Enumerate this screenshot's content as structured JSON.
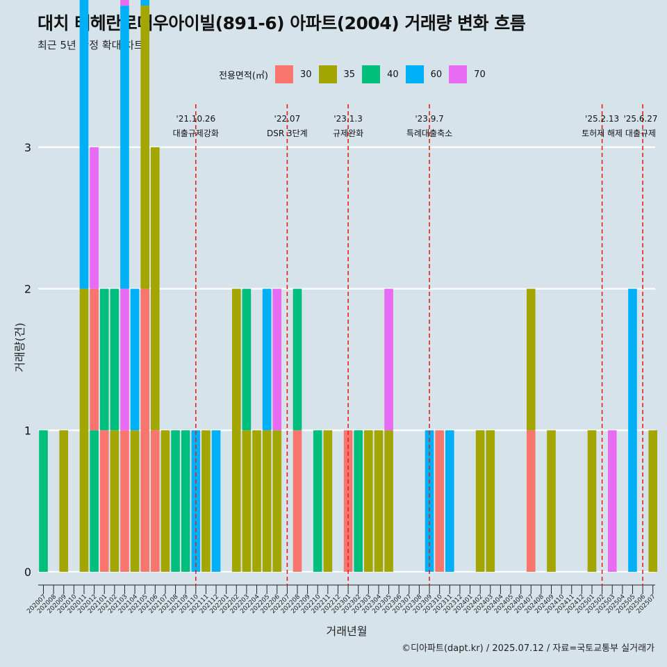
{
  "title": "대치 테헤란로대우아이빌(891-6) 아파트(2004) 거래량 변화 흐름",
  "subtitle": "최근 5년 한정 확대 차트",
  "legend_title": "전용면적(㎡)",
  "caption": "©디아파트(dapt.kr) / 2025.07.12 / 자료=국토교통부 실거래가",
  "colors": {
    "30": "#F8766D",
    "35": "#A3A500",
    "40": "#00BF7D",
    "60": "#00B0F6",
    "70": "#E76BF3",
    "background": "#d6e3ea",
    "event_line": "#e8201a"
  },
  "chart_data": {
    "type": "bar",
    "xlabel": "거래년월",
    "ylabel": "거래량(건)",
    "ylim": [
      0,
      3
    ],
    "yticks": [
      0,
      1,
      2,
      3
    ],
    "grid": true,
    "legend_position": "top",
    "series_names": [
      "30",
      "35",
      "40",
      "60",
      "70"
    ],
    "categories": [
      "202007",
      "202008",
      "202009",
      "202010",
      "202011",
      "202012",
      "202101",
      "202102",
      "202103",
      "202104",
      "202105",
      "202106",
      "202107",
      "202108",
      "202109",
      "202110",
      "202111",
      "202112",
      "202201",
      "202202",
      "202203",
      "202204",
      "202205",
      "202206",
      "202207",
      "202208",
      "202209",
      "202210",
      "202211",
      "202212",
      "202301",
      "202302",
      "202303",
      "202304",
      "202305",
      "202306",
      "202307",
      "202308",
      "202309",
      "202310",
      "202311",
      "202312",
      "202401",
      "202402",
      "202403",
      "202404",
      "202405",
      "202406",
      "202407",
      "202408",
      "202409",
      "202410",
      "202411",
      "202412",
      "202501",
      "202502",
      "202503",
      "202504",
      "202505",
      "202506",
      "202507"
    ],
    "bars": [
      {
        "month": "202007",
        "segments": [
          {
            "area": "40",
            "count": 1
          }
        ]
      },
      {
        "month": "202009",
        "segments": [
          {
            "area": "35",
            "count": 1
          }
        ]
      },
      {
        "month": "202011",
        "segments": [
          {
            "area": "35",
            "count": 2
          },
          {
            "area": "60",
            "count": 3
          }
        ]
      },
      {
        "month": "202012",
        "segments": [
          {
            "area": "40",
            "count": 1
          },
          {
            "area": "30",
            "count": 1
          },
          {
            "area": "70",
            "count": 1
          }
        ]
      },
      {
        "month": "202101",
        "segments": [
          {
            "area": "30",
            "count": 1
          },
          {
            "area": "40",
            "count": 1
          }
        ]
      },
      {
        "month": "202102",
        "segments": [
          {
            "area": "35",
            "count": 1
          },
          {
            "area": "40",
            "count": 1
          }
        ]
      },
      {
        "month": "202103",
        "segments": [
          {
            "area": "30",
            "count": 1
          },
          {
            "area": "70",
            "count": 1
          },
          {
            "area": "60",
            "count": 2
          },
          {
            "area": "70",
            "count": 1
          }
        ]
      },
      {
        "month": "202104",
        "segments": [
          {
            "area": "35",
            "count": 1
          },
          {
            "area": "60",
            "count": 1
          }
        ]
      },
      {
        "month": "202105",
        "segments": [
          {
            "area": "30",
            "count": 2
          },
          {
            "area": "35",
            "count": 2
          },
          {
            "area": "60",
            "count": 1
          }
        ]
      },
      {
        "month": "202106",
        "segments": [
          {
            "area": "30",
            "count": 1
          },
          {
            "area": "35",
            "count": 2
          }
        ]
      },
      {
        "month": "202107",
        "segments": [
          {
            "area": "35",
            "count": 1
          }
        ]
      },
      {
        "month": "202108",
        "segments": [
          {
            "area": "40",
            "count": 1
          }
        ]
      },
      {
        "month": "202109",
        "segments": [
          {
            "area": "40",
            "count": 1
          }
        ]
      },
      {
        "month": "202110",
        "segments": [
          {
            "area": "60",
            "count": 1
          }
        ]
      },
      {
        "month": "202111",
        "segments": [
          {
            "area": "35",
            "count": 1
          }
        ]
      },
      {
        "month": "202112",
        "segments": [
          {
            "area": "60",
            "count": 1
          }
        ]
      },
      {
        "month": "202202",
        "segments": [
          {
            "area": "35",
            "count": 2
          }
        ]
      },
      {
        "month": "202203",
        "segments": [
          {
            "area": "35",
            "count": 1
          },
          {
            "area": "40",
            "count": 1
          }
        ]
      },
      {
        "month": "202204",
        "segments": [
          {
            "area": "35",
            "count": 1
          }
        ]
      },
      {
        "month": "202205",
        "segments": [
          {
            "area": "35",
            "count": 1
          },
          {
            "area": "60",
            "count": 1
          }
        ]
      },
      {
        "month": "202206",
        "segments": [
          {
            "area": "35",
            "count": 1
          },
          {
            "area": "70",
            "count": 1
          }
        ]
      },
      {
        "month": "202208",
        "segments": [
          {
            "area": "30",
            "count": 1
          },
          {
            "area": "40",
            "count": 1
          }
        ]
      },
      {
        "month": "202210",
        "segments": [
          {
            "area": "40",
            "count": 1
          }
        ]
      },
      {
        "month": "202211",
        "segments": [
          {
            "area": "35",
            "count": 1
          }
        ]
      },
      {
        "month": "202301",
        "segments": [
          {
            "area": "30",
            "count": 1
          }
        ]
      },
      {
        "month": "202302",
        "segments": [
          {
            "area": "40",
            "count": 1
          }
        ]
      },
      {
        "month": "202303",
        "segments": [
          {
            "area": "35",
            "count": 1
          }
        ]
      },
      {
        "month": "202304",
        "segments": [
          {
            "area": "35",
            "count": 1
          }
        ]
      },
      {
        "month": "202305",
        "segments": [
          {
            "area": "35",
            "count": 1
          },
          {
            "area": "70",
            "count": 1
          }
        ]
      },
      {
        "month": "202309",
        "segments": [
          {
            "area": "60",
            "count": 1
          }
        ]
      },
      {
        "month": "202310",
        "segments": [
          {
            "area": "30",
            "count": 1
          }
        ]
      },
      {
        "month": "202311",
        "segments": [
          {
            "area": "60",
            "count": 1
          }
        ]
      },
      {
        "month": "202402",
        "segments": [
          {
            "area": "35",
            "count": 1
          }
        ]
      },
      {
        "month": "202403",
        "segments": [
          {
            "area": "35",
            "count": 1
          }
        ]
      },
      {
        "month": "202407",
        "segments": [
          {
            "area": "30",
            "count": 1
          },
          {
            "area": "35",
            "count": 1
          }
        ]
      },
      {
        "month": "202409",
        "segments": [
          {
            "area": "35",
            "count": 1
          }
        ]
      },
      {
        "month": "202501",
        "segments": [
          {
            "area": "35",
            "count": 1
          }
        ]
      },
      {
        "month": "202503",
        "segments": [
          {
            "area": "70",
            "count": 1
          }
        ]
      },
      {
        "month": "202505",
        "segments": [
          {
            "area": "60",
            "count": 2
          }
        ]
      },
      {
        "month": "202507",
        "segments": [
          {
            "area": "35",
            "count": 1
          }
        ]
      }
    ],
    "events": [
      {
        "date_label": "'21.10.26",
        "label": "대출규제강화",
        "month": "202110"
      },
      {
        "date_label": "'22.07",
        "label": "DSR 3단계",
        "month": "202207"
      },
      {
        "date_label": "'23.1.3",
        "label": "규제완화",
        "month": "202301"
      },
      {
        "date_label": "'23.9.7",
        "label": "특례대출축소",
        "month": "202309"
      },
      {
        "date_label": "'25.2.13",
        "label": "토허제 해제",
        "month": "202502"
      },
      {
        "date_label": "'25.6.27",
        "label": "대출규제",
        "month": "202506"
      }
    ]
  }
}
